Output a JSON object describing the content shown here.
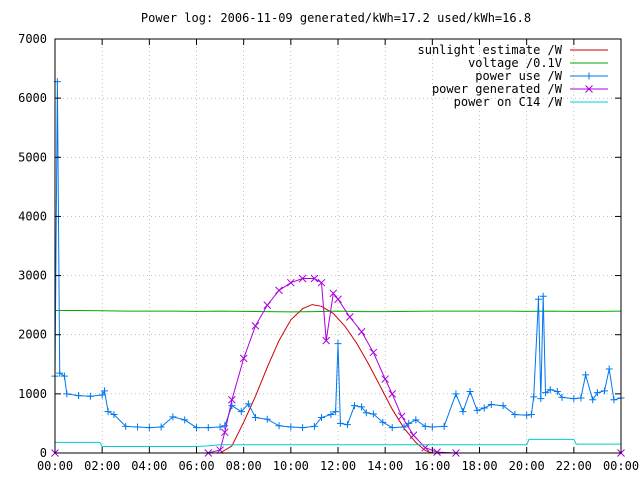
{
  "chart_data": {
    "type": "line",
    "title": "Power log: 2006-11-09 generated/kWh=17.2 used/kWh=16.8",
    "xlabel": "",
    "ylabel": "",
    "x_range_hours": [
      0,
      24
    ],
    "ylim": [
      0,
      7000
    ],
    "x_ticks": [
      "00:00",
      "02:00",
      "04:00",
      "06:00",
      "08:00",
      "10:00",
      "12:00",
      "14:00",
      "16:00",
      "18:00",
      "20:00",
      "22:00",
      "00:00"
    ],
    "y_ticks": [
      0,
      1000,
      2000,
      3000,
      4000,
      5000,
      6000,
      7000
    ],
    "grid": true,
    "legend_position": "top-right",
    "series": [
      {
        "name": "sunlight estimate /W",
        "color": "#cc0000",
        "marker": "none",
        "points": [
          [
            7.0,
            0
          ],
          [
            7.5,
            120
          ],
          [
            8.0,
            520
          ],
          [
            8.5,
            960
          ],
          [
            9.0,
            1450
          ],
          [
            9.5,
            1900
          ],
          [
            10.0,
            2250
          ],
          [
            10.5,
            2440
          ],
          [
            10.9,
            2510
          ],
          [
            11.3,
            2480
          ],
          [
            11.8,
            2360
          ],
          [
            12.3,
            2140
          ],
          [
            12.8,
            1850
          ],
          [
            13.3,
            1500
          ],
          [
            13.8,
            1120
          ],
          [
            14.3,
            740
          ],
          [
            14.8,
            420
          ],
          [
            15.3,
            180
          ],
          [
            15.7,
            40
          ],
          [
            16.0,
            0
          ],
          [
            24.0,
            0
          ]
        ]
      },
      {
        "name": "voltage /0.1V",
        "color": "#00aa00",
        "marker": "none",
        "points": [
          [
            0,
            2410
          ],
          [
            1,
            2410
          ],
          [
            2,
            2405
          ],
          [
            3,
            2400
          ],
          [
            4,
            2400
          ],
          [
            5,
            2400
          ],
          [
            6,
            2395
          ],
          [
            7,
            2400
          ],
          [
            8,
            2395
          ],
          [
            9,
            2390
          ],
          [
            10,
            2385
          ],
          [
            11,
            2390
          ],
          [
            12,
            2400
          ],
          [
            13,
            2390
          ],
          [
            14,
            2390
          ],
          [
            15,
            2395
          ],
          [
            16,
            2400
          ],
          [
            17,
            2400
          ],
          [
            18,
            2400
          ],
          [
            19,
            2400
          ],
          [
            20,
            2395
          ],
          [
            21,
            2400
          ],
          [
            22,
            2395
          ],
          [
            23,
            2395
          ],
          [
            24,
            2400
          ]
        ]
      },
      {
        "name": "power use /W",
        "color": "#0077ee",
        "marker": "plus",
        "points": [
          [
            0.0,
            1300
          ],
          [
            0.1,
            6280
          ],
          [
            0.2,
            1350
          ],
          [
            0.4,
            1300
          ],
          [
            0.5,
            1000
          ],
          [
            1.0,
            970
          ],
          [
            1.5,
            960
          ],
          [
            2.0,
            980
          ],
          [
            2.1,
            1050
          ],
          [
            2.25,
            700
          ],
          [
            2.5,
            650
          ],
          [
            3.0,
            450
          ],
          [
            3.5,
            440
          ],
          [
            4.0,
            430
          ],
          [
            4.5,
            440
          ],
          [
            5.0,
            610
          ],
          [
            5.5,
            560
          ],
          [
            6.0,
            430
          ],
          [
            6.5,
            430
          ],
          [
            7.0,
            440
          ],
          [
            7.2,
            460
          ],
          [
            7.5,
            800
          ],
          [
            7.9,
            700
          ],
          [
            8.2,
            830
          ],
          [
            8.5,
            600
          ],
          [
            9.0,
            570
          ],
          [
            9.5,
            460
          ],
          [
            10.0,
            440
          ],
          [
            10.5,
            430
          ],
          [
            11.0,
            450
          ],
          [
            11.3,
            600
          ],
          [
            11.7,
            650
          ],
          [
            11.9,
            700
          ],
          [
            12.0,
            1850
          ],
          [
            12.1,
            500
          ],
          [
            12.4,
            480
          ],
          [
            12.7,
            800
          ],
          [
            13.0,
            780
          ],
          [
            13.2,
            680
          ],
          [
            13.5,
            660
          ],
          [
            13.9,
            520
          ],
          [
            14.3,
            430
          ],
          [
            14.8,
            440
          ],
          [
            15.0,
            500
          ],
          [
            15.3,
            560
          ],
          [
            15.7,
            450
          ],
          [
            16.0,
            440
          ],
          [
            16.5,
            450
          ],
          [
            17.0,
            1000
          ],
          [
            17.3,
            700
          ],
          [
            17.6,
            1040
          ],
          [
            17.9,
            720
          ],
          [
            18.2,
            760
          ],
          [
            18.5,
            820
          ],
          [
            19.0,
            800
          ],
          [
            19.5,
            650
          ],
          [
            20.0,
            640
          ],
          [
            20.2,
            650
          ],
          [
            20.3,
            950
          ],
          [
            20.5,
            2600
          ],
          [
            20.6,
            920
          ],
          [
            20.7,
            2650
          ],
          [
            20.8,
            1020
          ],
          [
            21.0,
            1070
          ],
          [
            21.3,
            1040
          ],
          [
            21.5,
            940
          ],
          [
            22.0,
            920
          ],
          [
            22.3,
            930
          ],
          [
            22.5,
            1320
          ],
          [
            22.8,
            900
          ],
          [
            23.0,
            1020
          ],
          [
            23.3,
            1050
          ],
          [
            23.5,
            1420
          ],
          [
            23.7,
            900
          ],
          [
            24.0,
            930
          ]
        ]
      },
      {
        "name": "power generated /W",
        "color": "#aa00dd",
        "marker": "cross",
        "points": [
          [
            0,
            0
          ],
          [
            6.5,
            0
          ],
          [
            7.0,
            50
          ],
          [
            7.2,
            350
          ],
          [
            7.5,
            900
          ],
          [
            8.0,
            1600
          ],
          [
            8.5,
            2150
          ],
          [
            9.0,
            2500
          ],
          [
            9.5,
            2750
          ],
          [
            10.0,
            2880
          ],
          [
            10.5,
            2950
          ],
          [
            11.0,
            2950
          ],
          [
            11.3,
            2880
          ],
          [
            11.5,
            1900
          ],
          [
            11.8,
            2700
          ],
          [
            12.0,
            2600
          ],
          [
            12.5,
            2300
          ],
          [
            13.0,
            2050
          ],
          [
            13.5,
            1700
          ],
          [
            14.0,
            1250
          ],
          [
            14.3,
            1000
          ],
          [
            14.7,
            620
          ],
          [
            15.2,
            300
          ],
          [
            15.7,
            90
          ],
          [
            16.2,
            15
          ],
          [
            17.0,
            0
          ],
          [
            24.0,
            0
          ]
        ]
      },
      {
        "name": "power on C14 /W",
        "color": "#00cccc",
        "marker": "none",
        "points": [
          [
            0,
            180
          ],
          [
            1.9,
            180
          ],
          [
            2.0,
            110
          ],
          [
            6.0,
            110
          ],
          [
            6.5,
            120
          ],
          [
            7.0,
            140
          ],
          [
            12.0,
            140
          ],
          [
            13.0,
            140
          ],
          [
            18.0,
            140
          ],
          [
            20.0,
            140
          ],
          [
            20.1,
            230
          ],
          [
            22.0,
            230
          ],
          [
            22.1,
            150
          ],
          [
            24.0,
            150
          ]
        ]
      }
    ]
  }
}
